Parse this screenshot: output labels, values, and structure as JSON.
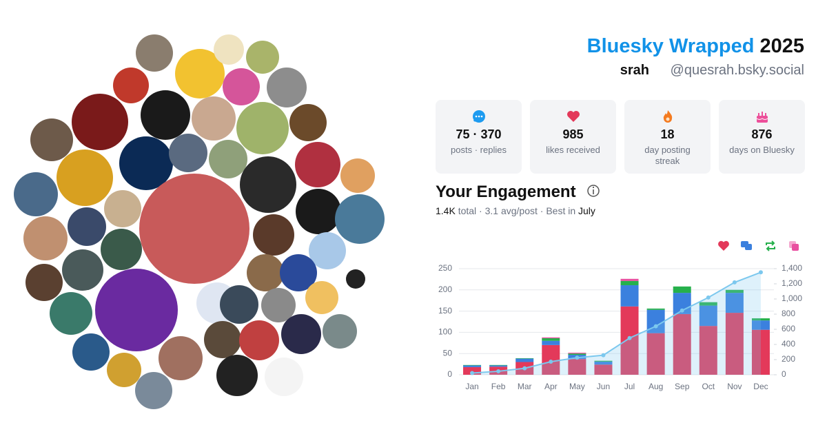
{
  "header": {
    "title": "Bluesky Wrapped",
    "year": "2025",
    "name": "srah",
    "handle": "@quesrah.bsky.social"
  },
  "stats": [
    {
      "value": "75 · 370",
      "label": "posts · replies"
    },
    {
      "value": "985",
      "label": "likes received"
    },
    {
      "value": "18",
      "label": "day posting streak"
    },
    {
      "value": "876",
      "label": "days on Bluesky"
    }
  ],
  "engagement": {
    "title": "Your Engagement",
    "summary": [
      "1.4K",
      "total · 3.1 avg/post · Best in",
      "July"
    ]
  },
  "chart_data": {
    "type": "bar",
    "stacked": true,
    "categories": [
      "Jan",
      "Feb",
      "Mar",
      "Apr",
      "May",
      "Jun",
      "Jul",
      "Aug",
      "Sep",
      "Oct",
      "Nov",
      "Dec"
    ],
    "series": [
      {
        "color": "#e3395a",
        "values": [
          18,
          19,
          30,
          70,
          37,
          24,
          161,
          98,
          143,
          115,
          146,
          106
        ]
      },
      {
        "color": "#3b80de",
        "values": [
          4,
          3,
          8,
          10,
          10,
          7,
          50,
          55,
          50,
          48,
          47,
          22
        ]
      },
      {
        "color": "#26b04c",
        "values": [
          1,
          1,
          1,
          6,
          3,
          2,
          10,
          3,
          15,
          8,
          7,
          5
        ]
      },
      {
        "color": "#e94fa0",
        "values": [
          0,
          0,
          0,
          2,
          2,
          0,
          5,
          0,
          0,
          0,
          0,
          0
        ]
      },
      {
        "type": "line",
        "axis": "y2",
        "color": "#7cc8ee",
        "values": [
          23,
          46,
          85,
          173,
          225,
          258,
          484,
          640,
          848,
          1019,
          1219,
          1352
        ]
      }
    ],
    "ylim": [
      0,
      250
    ],
    "yticks": [
      0,
      50,
      100,
      150,
      200,
      250
    ],
    "y2lim": [
      0,
      1400
    ],
    "y2ticks": [
      0,
      200,
      400,
      600,
      800,
      {
        "value": 1000,
        "label": "1,000"
      },
      {
        "value": 1200,
        "label": "1,200"
      },
      {
        "value": 1400,
        "label": "1,400"
      }
    ],
    "grid": true
  }
}
